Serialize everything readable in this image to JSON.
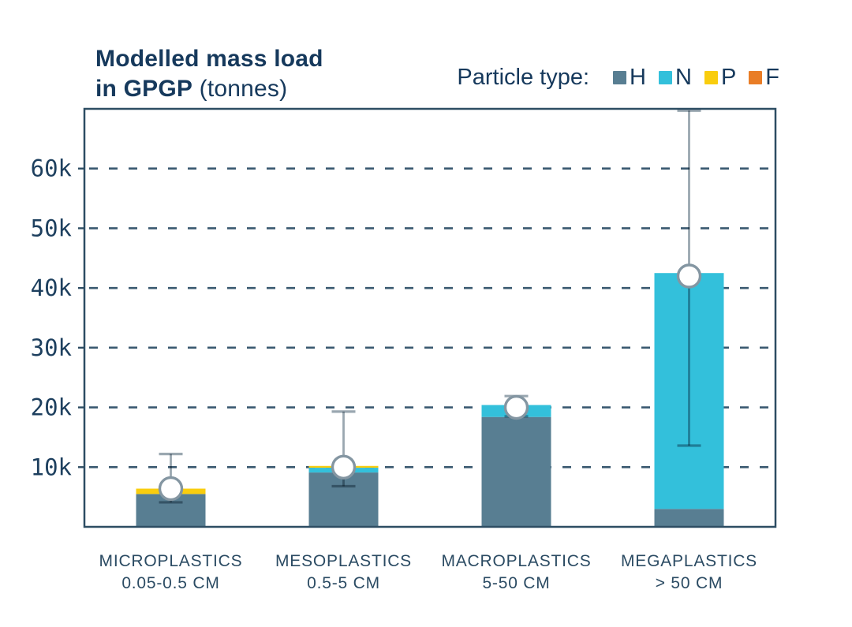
{
  "title": {
    "line1_bold": "Modelled mass load",
    "line2_bold": "in GPGP",
    "line2_suffix": " (tonnes)"
  },
  "legend": {
    "label": "Particle type:",
    "items": [
      {
        "key": "H",
        "color": "#587e92"
      },
      {
        "key": "N",
        "color": "#33c0db"
      },
      {
        "key": "P",
        "color": "#f9cd0e"
      },
      {
        "key": "F",
        "color": "#e97d26"
      }
    ]
  },
  "chart_data": {
    "type": "bar",
    "stacked": true,
    "title": "Modelled mass load in GPGP (tonnes)",
    "unit": "tonnes",
    "categories": [
      {
        "name": "MICROPLASTICS",
        "size_range": "0.05-0.5 CM"
      },
      {
        "name": "MESOPLASTICS",
        "size_range": "0.5-5 CM"
      },
      {
        "name": "MACROPLASTICS",
        "size_range": "5-50 CM"
      },
      {
        "name": "MEGAPLASTICS",
        "size_range": "> 50 CM"
      }
    ],
    "series": [
      {
        "name": "H",
        "color": "#587e92",
        "values": [
          5500,
          9100,
          18400,
          3000
        ]
      },
      {
        "name": "N",
        "color": "#33c0db",
        "values": [
          0,
          800,
          2000,
          39500
        ]
      },
      {
        "name": "P",
        "color": "#f9cd0e",
        "values": [
          900,
          300,
          0,
          0
        ]
      },
      {
        "name": "F",
        "color": "#e97d26",
        "values": [
          0,
          0,
          0,
          0
        ]
      }
    ],
    "totals_marker": {
      "shape": "circle",
      "values": [
        6400,
        10000,
        20000,
        42000
      ]
    },
    "error_bars": {
      "low": [
        4100,
        6800,
        18500,
        13600
      ],
      "high": [
        12200,
        19300,
        21900,
        69700
      ]
    },
    "y_axis": {
      "min": 0,
      "max": 70000,
      "tick_values": [
        10000,
        20000,
        30000,
        40000,
        50000,
        60000
      ],
      "tick_labels": [
        "10k",
        "20k",
        "30k",
        "40k",
        "50k",
        "60k"
      ]
    },
    "grid": {
      "horizontal": true,
      "style": "dashed"
    },
    "legend_position": "top-right",
    "colors": {
      "frame": "#2d4d63",
      "grid": "#3a5970",
      "whisker": "#9aa7b0",
      "marker_fill": "#ffffff",
      "marker_stroke": "#8496a2",
      "title_text": "#16395c",
      "tick_text": "#1d3f5e",
      "category_text": "#2b4b63"
    }
  }
}
